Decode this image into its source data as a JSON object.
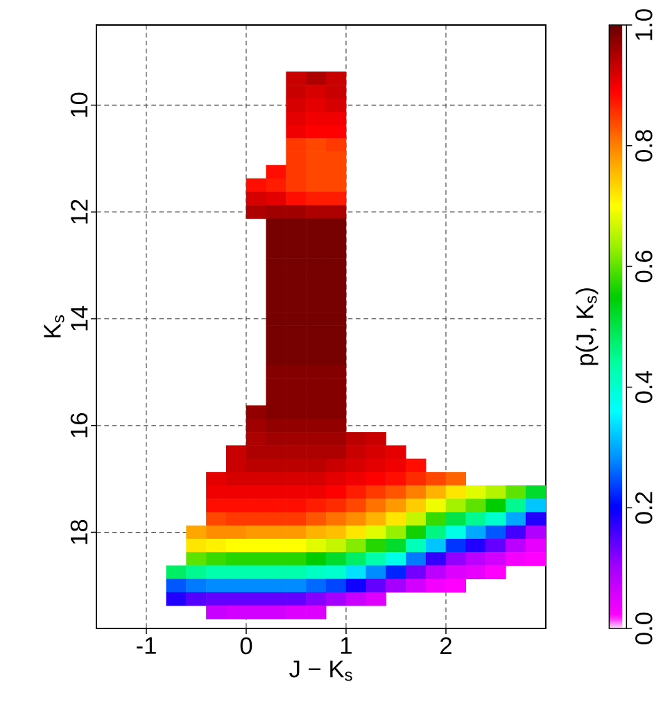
{
  "chart_data": {
    "type": "scatter",
    "xlabel": "J − K$_{s}$",
    "ylabel": "K$_{s}$",
    "clabel": "p(J, K$_{s}$)",
    "xlim": [
      -1.5,
      3
    ],
    "ylim": [
      19.8,
      8.5
    ],
    "xticks": [
      -1,
      0,
      1,
      2
    ],
    "yticks": [
      10,
      12,
      14,
      16,
      18
    ],
    "clim": [
      0,
      1
    ],
    "cticks": [
      {
        "value": 0,
        "label": "0.0"
      },
      0.2,
      0.4,
      0.6,
      0.8,
      {
        "value": 1,
        "label": "1.0"
      }
    ],
    "grid": true,
    "marker": "square",
    "x": [
      0.5,
      0.7,
      0.9,
      0.5,
      0.7,
      0.9,
      0.5,
      0.7,
      0.9,
      0.5,
      0.7,
      0.9,
      0.5,
      0.7,
      0.9,
      0.5,
      0.7,
      0.9,
      0.5,
      0.7,
      0.9,
      0.3,
      0.5,
      0.7,
      0.9,
      0.1,
      0.3,
      0.5,
      0.7,
      0.9,
      0.1,
      0.3,
      0.5,
      0.7,
      0.9,
      0.1,
      0.3,
      0.5,
      0.7,
      0.9,
      0.3,
      0.5,
      0.7,
      0.9,
      0.3,
      0.5,
      0.7,
      0.9,
      0.3,
      0.5,
      0.7,
      0.9,
      0.3,
      0.5,
      0.7,
      0.9,
      0.3,
      0.5,
      0.7,
      0.9,
      0.3,
      0.5,
      0.7,
      0.9,
      0.3,
      0.5,
      0.7,
      0.9,
      0.3,
      0.5,
      0.7,
      0.9,
      0.3,
      0.5,
      0.7,
      0.9,
      0.3,
      0.5,
      0.7,
      0.9,
      0.3,
      0.5,
      0.7,
      0.9,
      0.3,
      0.5,
      0.7,
      0.9,
      0.3,
      0.5,
      0.7,
      0.9,
      0.3,
      0.5,
      0.7,
      0.9,
      0.1,
      0.3,
      0.5,
      0.7,
      0.9,
      0.1,
      0.3,
      0.5,
      0.7,
      0.9,
      0.1,
      0.3,
      0.5,
      0.7,
      0.9,
      1.1,
      1.3,
      -0.1,
      0.1,
      0.3,
      0.5,
      0.7,
      0.9,
      1.1,
      1.3,
      1.5,
      -0.1,
      0.1,
      0.3,
      0.5,
      0.7,
      0.9,
      1.1,
      1.3,
      1.5,
      1.7,
      -0.3,
      -0.1,
      0.1,
      0.3,
      0.5,
      0.7,
      0.9,
      1.1,
      1.3,
      1.5,
      1.7,
      1.9,
      2.1,
      -0.3,
      -0.1,
      0.1,
      0.3,
      0.5,
      0.7,
      0.9,
      1.1,
      1.3,
      1.5,
      1.7,
      1.9,
      2.1,
      2.3,
      2.5,
      2.7,
      2.9,
      -0.3,
      -0.1,
      0.1,
      0.3,
      0.5,
      0.7,
      0.9,
      1.1,
      1.3,
      1.5,
      1.7,
      1.9,
      2.1,
      2.3,
      2.5,
      2.7,
      2.9,
      -0.3,
      -0.1,
      0.1,
      0.3,
      0.5,
      0.7,
      0.9,
      1.1,
      1.3,
      1.5,
      1.7,
      1.9,
      2.1,
      2.3,
      2.5,
      2.7,
      2.9,
      -0.5,
      -0.3,
      -0.1,
      0.1,
      0.3,
      0.5,
      0.7,
      0.9,
      1.1,
      1.3,
      1.5,
      1.7,
      1.9,
      2.1,
      2.3,
      2.5,
      2.7,
      2.9,
      -0.5,
      -0.3,
      -0.1,
      0.1,
      0.3,
      0.5,
      0.7,
      0.9,
      1.1,
      1.3,
      1.5,
      1.7,
      1.9,
      2.1,
      2.3,
      2.5,
      2.7,
      2.9,
      -0.5,
      -0.3,
      -0.1,
      0.1,
      0.3,
      0.5,
      0.7,
      0.9,
      1.1,
      1.3,
      1.5,
      1.7,
      1.9,
      2.1,
      2.3,
      2.5,
      2.7,
      2.9,
      -0.7,
      -0.5,
      -0.3,
      -0.1,
      0.1,
      0.3,
      0.5,
      0.7,
      0.9,
      1.1,
      1.3,
      1.5,
      1.7,
      1.9,
      2.1,
      2.3,
      2.5,
      -0.7,
      -0.5,
      -0.3,
      -0.1,
      0.1,
      0.3,
      0.5,
      0.7,
      0.9,
      1.1,
      1.3,
      1.5,
      1.7,
      1.9,
      2.1,
      -0.7,
      -0.5,
      -0.3,
      -0.1,
      0.1,
      0.3,
      0.5,
      0.7,
      0.9,
      1.1,
      1.3,
      -0.3,
      -0.1,
      0.1,
      0.3,
      0.5,
      0.7
    ],
    "values": [
      9.5,
      9.5,
      9.5,
      9.75,
      9.75,
      9.75,
      10,
      10,
      10,
      10.25,
      10.25,
      10.25,
      10.5,
      10.5,
      10.5,
      10.75,
      10.75,
      10.75,
      11,
      11,
      11,
      11.25,
      11.25,
      11.25,
      11.25,
      11.5,
      11.5,
      11.5,
      11.5,
      11.5,
      11.75,
      11.75,
      11.75,
      11.75,
      11.75,
      12,
      12,
      12,
      12,
      12,
      12.25,
      12.25,
      12.25,
      12.25,
      12.5,
      12.5,
      12.5,
      12.5,
      12.75,
      12.75,
      12.75,
      12.75,
      13,
      13,
      13,
      13,
      13.25,
      13.25,
      13.25,
      13.25,
      13.5,
      13.5,
      13.5,
      13.5,
      13.75,
      13.75,
      13.75,
      13.75,
      14,
      14,
      14,
      14,
      14.25,
      14.25,
      14.25,
      14.25,
      14.5,
      14.5,
      14.5,
      14.5,
      14.75,
      14.75,
      14.75,
      14.75,
      15,
      15,
      15,
      15,
      15.25,
      15.25,
      15.25,
      15.25,
      15.5,
      15.5,
      15.5,
      15.5,
      15.75,
      15.75,
      15.75,
      15.75,
      15.75,
      16,
      16,
      16,
      16,
      16,
      16.25,
      16.25,
      16.25,
      16.25,
      16.25,
      16.25,
      16.25,
      16.5,
      16.5,
      16.5,
      16.5,
      16.5,
      16.5,
      16.5,
      16.5,
      16.5,
      16.75,
      16.75,
      16.75,
      16.75,
      16.75,
      16.75,
      16.75,
      16.75,
      16.75,
      16.75,
      17,
      17,
      17,
      17,
      17,
      17,
      17,
      17,
      17,
      17,
      17,
      17,
      17,
      17.25,
      17.25,
      17.25,
      17.25,
      17.25,
      17.25,
      17.25,
      17.25,
      17.25,
      17.25,
      17.25,
      17.25,
      17.25,
      17.25,
      17.25,
      17.25,
      17.25,
      17.5,
      17.5,
      17.5,
      17.5,
      17.5,
      17.5,
      17.5,
      17.5,
      17.5,
      17.5,
      17.5,
      17.5,
      17.5,
      17.5,
      17.5,
      17.5,
      17.5,
      17.75,
      17.75,
      17.75,
      17.75,
      17.75,
      17.75,
      17.75,
      17.75,
      17.75,
      17.75,
      17.75,
      17.75,
      17.75,
      17.75,
      17.75,
      17.75,
      17.75,
      18,
      18,
      18,
      18,
      18,
      18,
      18,
      18,
      18,
      18,
      18,
      18,
      18,
      18,
      18,
      18,
      18,
      18,
      18.25,
      18.25,
      18.25,
      18.25,
      18.25,
      18.25,
      18.25,
      18.25,
      18.25,
      18.25,
      18.25,
      18.25,
      18.25,
      18.25,
      18.25,
      18.25,
      18.25,
      18.25,
      18.5,
      18.5,
      18.5,
      18.5,
      18.5,
      18.5,
      18.5,
      18.5,
      18.5,
      18.5,
      18.5,
      18.5,
      18.5,
      18.5,
      18.5,
      18.5,
      18.5,
      18.5,
      18.75,
      18.75,
      18.75,
      18.75,
      18.75,
      18.75,
      18.75,
      18.75,
      18.75,
      18.75,
      18.75,
      18.75,
      18.75,
      18.75,
      18.75,
      18.75,
      18.75,
      19,
      19,
      19,
      19,
      19,
      19,
      19,
      19,
      19,
      19,
      19,
      19,
      19,
      19,
      19,
      19.25,
      19.25,
      19.25,
      19.25,
      19.25,
      19.25,
      19.25,
      19.25,
      19.25,
      19.25,
      19.25,
      19.5,
      19.5,
      19.5,
      19.5,
      19.5,
      19.5
    ],
    "cvalues": [
      0.93,
      0.95,
      0.93,
      0.93,
      0.92,
      0.93,
      0.92,
      0.91,
      0.92,
      0.91,
      0.9,
      0.9,
      0.9,
      0.89,
      0.89,
      0.85,
      0.84,
      0.85,
      0.85,
      0.84,
      0.84,
      0.88,
      0.85,
      0.84,
      0.84,
      0.88,
      0.87,
      0.85,
      0.84,
      0.84,
      0.92,
      0.91,
      0.88,
      0.87,
      0.87,
      0.95,
      0.96,
      0.96,
      0.95,
      0.95,
      0.99,
      0.99,
      0.99,
      0.99,
      0.99,
      0.99,
      0.99,
      0.99,
      0.99,
      0.99,
      0.99,
      0.99,
      0.99,
      0.99,
      0.99,
      0.99,
      0.99,
      0.99,
      0.99,
      0.99,
      0.99,
      0.99,
      0.99,
      0.99,
      0.99,
      0.99,
      0.99,
      0.99,
      0.99,
      0.99,
      0.99,
      0.99,
      0.99,
      0.99,
      0.99,
      0.99,
      0.99,
      0.99,
      0.99,
      0.99,
      0.99,
      0.99,
      0.99,
      0.99,
      0.98,
      0.98,
      0.98,
      0.98,
      0.98,
      0.98,
      0.98,
      0.98,
      0.98,
      0.98,
      0.98,
      0.98,
      0.97,
      0.98,
      0.98,
      0.98,
      0.98,
      0.96,
      0.97,
      0.97,
      0.97,
      0.97,
      0.95,
      0.96,
      0.96,
      0.96,
      0.96,
      0.94,
      0.93,
      0.93,
      0.95,
      0.95,
      0.95,
      0.95,
      0.95,
      0.93,
      0.92,
      0.91,
      0.93,
      0.94,
      0.94,
      0.94,
      0.94,
      0.93,
      0.92,
      0.91,
      0.9,
      0.88,
      0.91,
      0.92,
      0.92,
      0.92,
      0.92,
      0.92,
      0.91,
      0.9,
      0.89,
      0.88,
      0.86,
      0.84,
      0.82,
      0.9,
      0.9,
      0.9,
      0.9,
      0.9,
      0.9,
      0.89,
      0.87,
      0.85,
      0.83,
      0.8,
      0.76,
      0.72,
      0.68,
      0.65,
      0.6,
      0.52,
      0.88,
      0.88,
      0.88,
      0.88,
      0.88,
      0.87,
      0.86,
      0.84,
      0.81,
      0.78,
      0.74,
      0.69,
      0.64,
      0.6,
      0.55,
      0.45,
      0.32,
      0.84,
      0.85,
      0.85,
      0.85,
      0.85,
      0.83,
      0.81,
      0.79,
      0.76,
      0.72,
      0.66,
      0.58,
      0.5,
      0.45,
      0.4,
      0.3,
      0.18,
      0.77,
      0.79,
      0.79,
      0.78,
      0.78,
      0.78,
      0.76,
      0.75,
      0.72,
      0.68,
      0.63,
      0.56,
      0.46,
      0.38,
      0.3,
      0.25,
      0.16,
      0.09,
      0.72,
      0.71,
      0.7,
      0.7,
      0.7,
      0.7,
      0.68,
      0.66,
      0.62,
      0.57,
      0.52,
      0.42,
      0.32,
      0.23,
      0.18,
      0.14,
      0.08,
      0.04,
      0.6,
      0.58,
      0.57,
      0.57,
      0.57,
      0.57,
      0.55,
      0.52,
      0.48,
      0.43,
      0.38,
      0.27,
      0.17,
      0.11,
      0.08,
      0.06,
      0.03,
      0.02,
      0.48,
      0.45,
      0.43,
      0.43,
      0.43,
      0.43,
      0.43,
      0.41,
      0.4,
      0.34,
      0.28,
      0.22,
      0.13,
      0.08,
      0.05,
      0.04,
      0.02,
      0.25,
      0.27,
      0.28,
      0.28,
      0.28,
      0.28,
      0.28,
      0.26,
      0.24,
      0.19,
      0.14,
      0.1,
      0.06,
      0.03,
      0.02,
      0.18,
      0.15,
      0.14,
      0.14,
      0.14,
      0.14,
      0.14,
      0.12,
      0.1,
      0.07,
      0.05,
      0.07,
      0.06,
      0.06,
      0.06,
      0.05,
      0.05
    ]
  }
}
